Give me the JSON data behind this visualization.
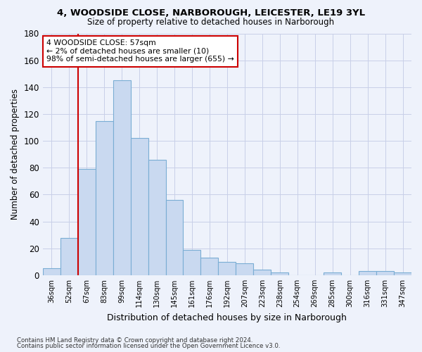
{
  "title_line1": "4, WOODSIDE CLOSE, NARBOROUGH, LEICESTER, LE19 3YL",
  "title_line2": "Size of property relative to detached houses in Narborough",
  "xlabel": "Distribution of detached houses by size in Narborough",
  "ylabel": "Number of detached properties",
  "bar_labels": [
    "36sqm",
    "52sqm",
    "67sqm",
    "83sqm",
    "99sqm",
    "114sqm",
    "130sqm",
    "145sqm",
    "161sqm",
    "176sqm",
    "192sqm",
    "207sqm",
    "223sqm",
    "238sqm",
    "254sqm",
    "269sqm",
    "285sqm",
    "300sqm",
    "316sqm",
    "331sqm",
    "347sqm"
  ],
  "bar_values": [
    5,
    28,
    79,
    115,
    145,
    102,
    86,
    56,
    19,
    13,
    10,
    9,
    4,
    2,
    0,
    0,
    2,
    0,
    3,
    3,
    2
  ],
  "bar_color": "#c9d9f0",
  "bar_edge_color": "#7aadd4",
  "highlight_bar_idx": 1,
  "highlight_color": "#cc0000",
  "annotation_line1": "4 WOODSIDE CLOSE: 57sqm",
  "annotation_line2": "← 2% of detached houses are smaller (10)",
  "annotation_line3": "98% of semi-detached houses are larger (655) →",
  "annotation_box_color": "#ffffff",
  "annotation_box_edge": "#cc0000",
  "ylim": [
    0,
    180
  ],
  "yticks": [
    0,
    20,
    40,
    60,
    80,
    100,
    120,
    140,
    160,
    180
  ],
  "footer_line1": "Contains HM Land Registry data © Crown copyright and database right 2024.",
  "footer_line2": "Contains public sector information licensed under the Open Government Licence v3.0.",
  "bg_color": "#eef2fb",
  "plot_bg_color": "#eef2fb",
  "grid_color": "#c8cfe8"
}
